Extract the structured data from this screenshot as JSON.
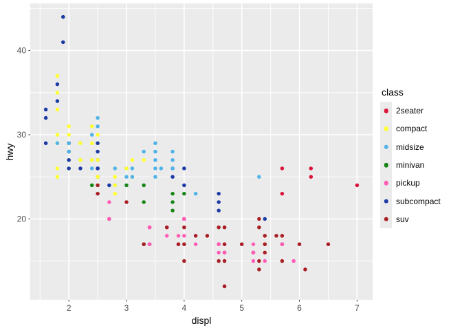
{
  "chart_data": {
    "type": "scatter",
    "xlabel": "displ",
    "ylabel": "hwy",
    "x_ticks": [
      2,
      3,
      4,
      5,
      6,
      7
    ],
    "x_minor_ticks": [
      1.5,
      2.5,
      3.5,
      4.5,
      5.5,
      6.5
    ],
    "y_ticks": [
      20,
      30,
      40
    ],
    "y_minor_ticks": [
      15,
      25,
      35,
      45
    ],
    "xlim": [
      1.33,
      7.27
    ],
    "ylim": [
      10.4,
      45.6
    ],
    "grid": "on",
    "colors": {
      "panel_background": "#EBEBEB",
      "gridline": "#FFFFFF",
      "tick_label": "#4D4D4D",
      "tick_mark": "#333333",
      "axis_title": "#000000"
    },
    "legend": {
      "title": "class",
      "position": "right",
      "entries": [
        {
          "label": "2seater",
          "color": "#DC143C"
        },
        {
          "label": "compact",
          "color": "#FFFF33"
        },
        {
          "label": "midsize",
          "color": "#4FB3E8"
        },
        {
          "label": "minivan",
          "color": "#168416"
        },
        {
          "label": "pickup",
          "color": "#FF5CB8"
        },
        {
          "label": "subcompact",
          "color": "#1C3AA5"
        },
        {
          "label": "suv",
          "color": "#A81E22"
        }
      ]
    },
    "series": [
      {
        "name": "2seater",
        "points": [
          [
            5.7,
            23
          ],
          [
            5.7,
            26
          ],
          [
            6.2,
            25
          ],
          [
            6.2,
            26
          ],
          [
            7.0,
            24
          ]
        ]
      },
      {
        "name": "minivan",
        "points": [
          [
            2.4,
            24
          ],
          [
            3.0,
            24
          ],
          [
            3.3,
            24
          ],
          [
            3.3,
            22
          ],
          [
            3.3,
            17
          ],
          [
            3.8,
            23
          ],
          [
            3.8,
            22
          ],
          [
            3.8,
            21
          ],
          [
            4.0,
            23
          ]
        ]
      },
      {
        "name": "compact",
        "points": [
          [
            1.8,
            25
          ],
          [
            1.8,
            26
          ],
          [
            1.8,
            29
          ],
          [
            1.8,
            30
          ],
          [
            1.8,
            33
          ],
          [
            1.8,
            35
          ],
          [
            1.8,
            37
          ],
          [
            1.9,
            44
          ],
          [
            2.0,
            26
          ],
          [
            2.0,
            27
          ],
          [
            2.0,
            28
          ],
          [
            2.0,
            29
          ],
          [
            2.0,
            30
          ],
          [
            2.0,
            31
          ],
          [
            2.2,
            27
          ],
          [
            2.2,
            29
          ],
          [
            2.4,
            27
          ],
          [
            2.4,
            29
          ],
          [
            2.4,
            31
          ],
          [
            2.5,
            25
          ],
          [
            2.5,
            27
          ],
          [
            2.5,
            29
          ],
          [
            2.5,
            30
          ],
          [
            2.8,
            23
          ],
          [
            2.8,
            24
          ],
          [
            2.8,
            25
          ],
          [
            2.8,
            26
          ],
          [
            3.0,
            26
          ],
          [
            3.1,
            25
          ],
          [
            3.1,
            27
          ],
          [
            3.3,
            27
          ]
        ]
      },
      {
        "name": "subcompact",
        "points": [
          [
            1.6,
            29
          ],
          [
            1.6,
            32
          ],
          [
            1.6,
            33
          ],
          [
            1.8,
            34
          ],
          [
            1.8,
            36
          ],
          [
            1.9,
            41
          ],
          [
            1.9,
            44
          ],
          [
            2.0,
            26
          ],
          [
            2.0,
            27
          ],
          [
            2.0,
            28
          ],
          [
            2.0,
            29
          ],
          [
            2.2,
            26
          ],
          [
            2.5,
            26
          ],
          [
            2.5,
            28
          ],
          [
            2.5,
            29
          ],
          [
            2.7,
            24
          ],
          [
            3.8,
            25
          ],
          [
            3.8,
            26
          ],
          [
            4.0,
            24
          ],
          [
            4.0,
            26
          ],
          [
            4.6,
            21
          ],
          [
            4.6,
            22
          ],
          [
            4.6,
            23
          ],
          [
            5.4,
            20
          ]
        ]
      },
      {
        "name": "midsize",
        "points": [
          [
            1.8,
            29
          ],
          [
            2.0,
            28
          ],
          [
            2.0,
            29
          ],
          [
            2.2,
            27
          ],
          [
            2.2,
            29
          ],
          [
            2.4,
            26
          ],
          [
            2.4,
            27
          ],
          [
            2.4,
            30
          ],
          [
            2.4,
            31
          ],
          [
            2.5,
            26
          ],
          [
            2.5,
            31
          ],
          [
            2.5,
            32
          ],
          [
            2.8,
            24
          ],
          [
            2.8,
            26
          ],
          [
            3.0,
            25
          ],
          [
            3.0,
            26
          ],
          [
            3.1,
            25
          ],
          [
            3.1,
            26
          ],
          [
            3.3,
            28
          ],
          [
            3.5,
            25
          ],
          [
            3.5,
            26
          ],
          [
            3.5,
            27
          ],
          [
            3.5,
            28
          ],
          [
            3.5,
            29
          ],
          [
            3.6,
            26
          ],
          [
            3.8,
            26
          ],
          [
            3.8,
            27
          ],
          [
            3.8,
            28
          ],
          [
            4.2,
            23
          ],
          [
            5.3,
            25
          ]
        ]
      },
      {
        "name": "pickup",
        "points": [
          [
            2.7,
            20
          ],
          [
            2.7,
            22
          ],
          [
            3.4,
            17
          ],
          [
            3.4,
            19
          ],
          [
            3.7,
            18
          ],
          [
            3.7,
            19
          ],
          [
            3.9,
            17
          ],
          [
            3.9,
            18
          ],
          [
            4.0,
            18
          ],
          [
            4.0,
            20
          ],
          [
            4.2,
            17
          ],
          [
            4.6,
            16
          ],
          [
            4.6,
            17
          ],
          [
            4.7,
            12
          ],
          [
            4.7,
            16
          ],
          [
            4.7,
            17
          ],
          [
            4.7,
            19
          ],
          [
            5.2,
            15
          ],
          [
            5.2,
            16
          ],
          [
            5.2,
            17
          ],
          [
            5.4,
            15
          ],
          [
            5.4,
            17
          ],
          [
            5.7,
            17
          ],
          [
            5.9,
            15
          ]
        ]
      },
      {
        "name": "suv",
        "points": [
          [
            2.5,
            23
          ],
          [
            2.5,
            24
          ],
          [
            2.5,
            25
          ],
          [
            2.5,
            26
          ],
          [
            2.5,
            27
          ],
          [
            2.7,
            20
          ],
          [
            3.0,
            22
          ],
          [
            3.3,
            17
          ],
          [
            3.4,
            17
          ],
          [
            3.4,
            19
          ],
          [
            3.7,
            19
          ],
          [
            3.9,
            17
          ],
          [
            4.0,
            15
          ],
          [
            4.0,
            17
          ],
          [
            4.0,
            19
          ],
          [
            4.0,
            20
          ],
          [
            4.2,
            18
          ],
          [
            4.4,
            18
          ],
          [
            4.6,
            15
          ],
          [
            4.6,
            17
          ],
          [
            4.6,
            19
          ],
          [
            4.7,
            12
          ],
          [
            4.7,
            15
          ],
          [
            4.7,
            16
          ],
          [
            4.7,
            17
          ],
          [
            4.7,
            19
          ],
          [
            5.0,
            17
          ],
          [
            5.2,
            16
          ],
          [
            5.3,
            14
          ],
          [
            5.3,
            15
          ],
          [
            5.3,
            19
          ],
          [
            5.3,
            20
          ],
          [
            5.4,
            16
          ],
          [
            5.4,
            17
          ],
          [
            5.4,
            18
          ],
          [
            5.6,
            18
          ],
          [
            5.7,
            15
          ],
          [
            5.7,
            17
          ],
          [
            5.7,
            18
          ],
          [
            6.0,
            17
          ],
          [
            6.1,
            14
          ],
          [
            6.5,
            17
          ]
        ]
      }
    ],
    "topmost_overlaps": [
      {
        "x": 2.2,
        "y": 27,
        "class": "compact"
      },
      {
        "x": 2.2,
        "y": 29,
        "class": "compact"
      },
      {
        "x": 2.4,
        "y": 27,
        "class": "compact"
      },
      {
        "x": 2.4,
        "y": 31,
        "class": "compact"
      },
      {
        "x": 2.5,
        "y": 25,
        "class": "compact"
      },
      {
        "x": 2.5,
        "y": 27,
        "class": "compact"
      },
      {
        "x": 2.8,
        "y": 24,
        "class": "compact"
      },
      {
        "x": 3.0,
        "y": 26,
        "class": "compact"
      },
      {
        "x": 2.5,
        "y": 26,
        "class": "subcompact"
      },
      {
        "x": 2.7,
        "y": 20,
        "class": "pickup"
      },
      {
        "x": 3.4,
        "y": 17,
        "class": "pickup"
      },
      {
        "x": 3.4,
        "y": 19,
        "class": "pickup"
      },
      {
        "x": 4.0,
        "y": 20,
        "class": "pickup"
      },
      {
        "x": 4.6,
        "y": 17,
        "class": "pickup"
      },
      {
        "x": 4.7,
        "y": 16,
        "class": "pickup"
      },
      {
        "x": 5.2,
        "y": 16,
        "class": "pickup"
      },
      {
        "x": 5.7,
        "y": 17,
        "class": "pickup"
      },
      {
        "x": 5.9,
        "y": 15,
        "class": "pickup"
      }
    ]
  }
}
